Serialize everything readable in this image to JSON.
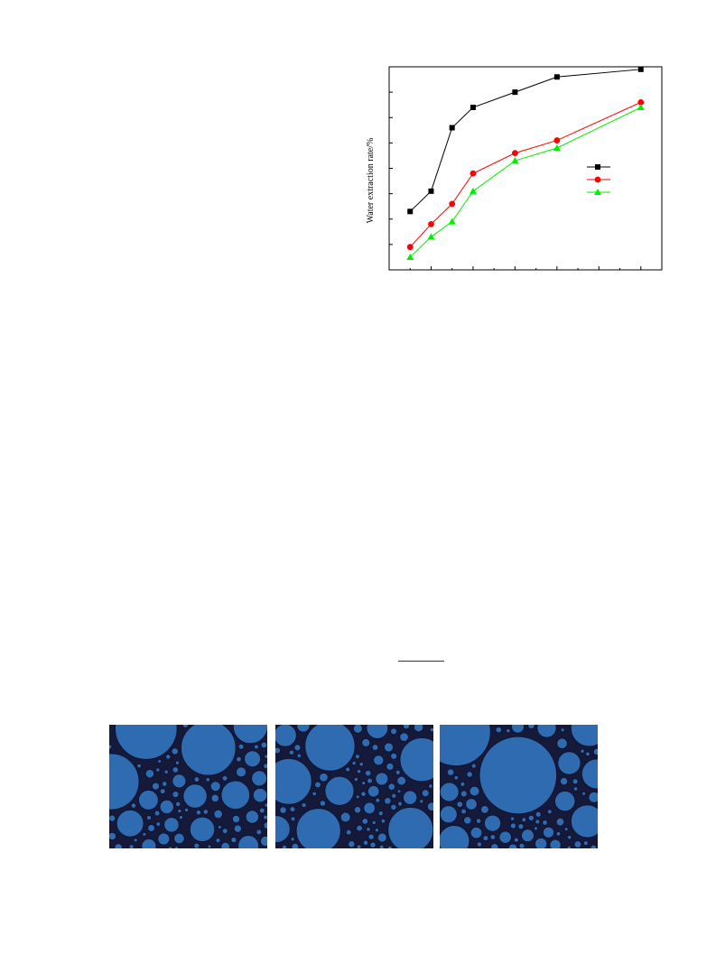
{
  "figure": {
    "chart_data": {
      "type": "line",
      "ylabel": "Water extraction rate/%",
      "x": [
        1,
        2,
        3,
        4,
        6,
        8,
        12
      ],
      "xlim": [
        0,
        13
      ],
      "ylim": [
        0,
        8
      ],
      "grid": false,
      "legend_position": "center-right",
      "series": [
        {
          "marker": "square",
          "color": "#000000",
          "values": [
            2.3,
            3.1,
            5.6,
            6.4,
            7.0,
            7.6,
            7.9
          ]
        },
        {
          "marker": "circle",
          "color": "#ff0000",
          "values": [
            0.9,
            1.8,
            2.6,
            3.8,
            4.6,
            5.1,
            6.6
          ]
        },
        {
          "marker": "triangle",
          "color": "#00ee00",
          "values": [
            0.5,
            1.3,
            1.9,
            3.1,
            4.3,
            4.8,
            6.4
          ]
        }
      ]
    }
  },
  "micrographs": {
    "count": 3,
    "colors": {
      "droplet": "#2f6bb0",
      "background": "#161a3a"
    }
  }
}
